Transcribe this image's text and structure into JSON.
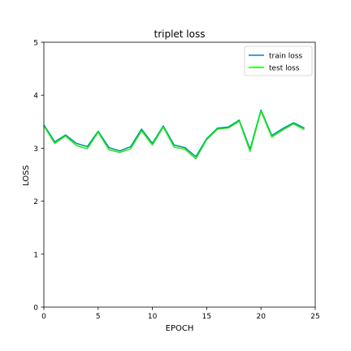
{
  "chart_data": {
    "type": "line",
    "title": "triplet loss",
    "xlabel": "EPOCH",
    "ylabel": "LOSS",
    "xlim": [
      0,
      25
    ],
    "ylim": [
      0,
      5
    ],
    "xticks": [
      0,
      5,
      10,
      15,
      20,
      25
    ],
    "yticks": [
      0,
      1,
      2,
      3,
      4,
      5
    ],
    "grid": false,
    "legend_position": "top-right",
    "x": [
      0,
      1,
      2,
      3,
      4,
      5,
      6,
      7,
      8,
      9,
      10,
      11,
      12,
      13,
      14,
      15,
      16,
      17,
      18,
      19,
      20,
      21,
      22,
      23,
      24
    ],
    "series": [
      {
        "name": "train loss",
        "color": "#1f77b4",
        "values": [
          3.44,
          3.12,
          3.25,
          3.09,
          3.03,
          3.32,
          3.01,
          2.95,
          3.03,
          3.36,
          3.09,
          3.42,
          3.06,
          3.01,
          2.84,
          3.18,
          3.38,
          3.4,
          3.53,
          2.98,
          3.72,
          3.24,
          3.37,
          3.48,
          3.38
        ]
      },
      {
        "name": "test loss",
        "color": "#00ff00",
        "values": [
          3.42,
          3.09,
          3.23,
          3.05,
          2.99,
          3.3,
          2.97,
          2.92,
          2.99,
          3.33,
          3.06,
          3.4,
          3.02,
          2.98,
          2.8,
          3.16,
          3.36,
          3.38,
          3.51,
          2.94,
          3.7,
          3.21,
          3.34,
          3.46,
          3.35
        ]
      }
    ]
  }
}
